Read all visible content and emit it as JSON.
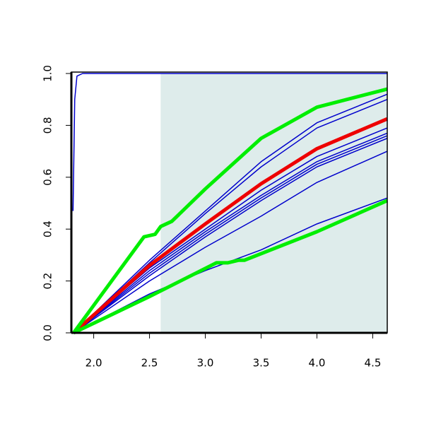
{
  "chart_data": {
    "type": "line",
    "xlim": [
      1.8,
      4.63
    ],
    "ylim": [
      0,
      1
    ],
    "xticks": [
      {
        "value": 2,
        "label": "2.0"
      },
      {
        "value": 2.5,
        "label": "2.5"
      },
      {
        "value": 3,
        "label": "3.0"
      },
      {
        "value": 3.5,
        "label": "3.5"
      },
      {
        "value": 4,
        "label": "4.0"
      },
      {
        "value": 4.5,
        "label": "4.5"
      }
    ],
    "yticks": [
      {
        "value": 0,
        "label": "0.0"
      },
      {
        "value": 0.2,
        "label": "0.2"
      },
      {
        "value": 0.4,
        "label": "0.4"
      },
      {
        "value": 0.6,
        "label": "0.6"
      },
      {
        "value": 0.8,
        "label": "0.8"
      },
      {
        "value": 1,
        "label": "1.0"
      }
    ],
    "shaded_region": {
      "xlim": [
        2.6,
        4.63
      ],
      "color": "#deeceb"
    },
    "series": [
      {
        "color": "#0000cc",
        "line_width": 1.5,
        "x": [
          1.815,
          1.83,
          1.85,
          1.9,
          4.63
        ],
        "values": [
          0.47,
          0.9,
          0.99,
          1.0,
          1.0
        ]
      },
      {
        "color": "#0000cc",
        "line_width": 1.5,
        "x": [
          1.82,
          2.5,
          3.0,
          3.5,
          4.0,
          4.63
        ],
        "values": [
          0,
          0.28,
          0.47,
          0.66,
          0.81,
          0.92
        ]
      },
      {
        "color": "#0000cc",
        "line_width": 1.5,
        "x": [
          1.82,
          2.5,
          3.0,
          3.5,
          4.0,
          4.63
        ],
        "values": [
          0,
          0.27,
          0.46,
          0.64,
          0.79,
          0.9
        ]
      },
      {
        "color": "#0000cc",
        "line_width": 1.5,
        "x": [
          1.82,
          2.5,
          3.0,
          3.5,
          4.0,
          4.63
        ],
        "values": [
          0,
          0.25,
          0.4,
          0.55,
          0.68,
          0.79
        ]
      },
      {
        "color": "#0000cc",
        "line_width": 1.5,
        "x": [
          1.82,
          2.5,
          3.0,
          3.5,
          4.0,
          4.63
        ],
        "values": [
          0,
          0.24,
          0.39,
          0.53,
          0.66,
          0.77
        ]
      },
      {
        "color": "#0000cc",
        "line_width": 1.5,
        "x": [
          1.82,
          2.5,
          3.0,
          3.5,
          4.0,
          4.63
        ],
        "values": [
          0,
          0.23,
          0.38,
          0.52,
          0.65,
          0.76
        ]
      },
      {
        "color": "#0000cc",
        "line_width": 1.5,
        "x": [
          1.82,
          2.5,
          3.0,
          3.5,
          4.0,
          4.63
        ],
        "values": [
          0,
          0.22,
          0.37,
          0.51,
          0.64,
          0.75
        ]
      },
      {
        "color": "#0000cc",
        "line_width": 1.5,
        "x": [
          1.82,
          2.5,
          3.0,
          3.5,
          4.0,
          4.63
        ],
        "values": [
          0,
          0.2,
          0.33,
          0.45,
          0.58,
          0.7
        ]
      },
      {
        "color": "#0000cc",
        "line_width": 1.5,
        "x": [
          1.82,
          2.5,
          3.0,
          3.5,
          4.0,
          4.63
        ],
        "values": [
          0,
          0.15,
          0.24,
          0.32,
          0.42,
          0.52
        ]
      },
      {
        "color": "#ee0000",
        "line_width": 5,
        "x": [
          1.82,
          2.5,
          3.0,
          3.5,
          4.0,
          4.63
        ],
        "values": [
          0,
          0.26,
          0.42,
          0.575,
          0.71,
          0.825
        ]
      },
      {
        "color": "#00ee00",
        "line_width": 5,
        "x": [
          1.82,
          2.45,
          2.55,
          2.6,
          2.7,
          3.0,
          3.5,
          4.0,
          4.63
        ],
        "values": [
          0,
          0.37,
          0.38,
          0.41,
          0.43,
          0.555,
          0.75,
          0.87,
          0.94
        ]
      },
      {
        "color": "#00ee00",
        "line_width": 5,
        "x": [
          1.82,
          2.5,
          3.1,
          3.2,
          3.3,
          3.35,
          4.0,
          4.63
        ],
        "values": [
          0,
          0.14,
          0.27,
          0.27,
          0.28,
          0.28,
          0.39,
          0.51
        ]
      }
    ]
  }
}
